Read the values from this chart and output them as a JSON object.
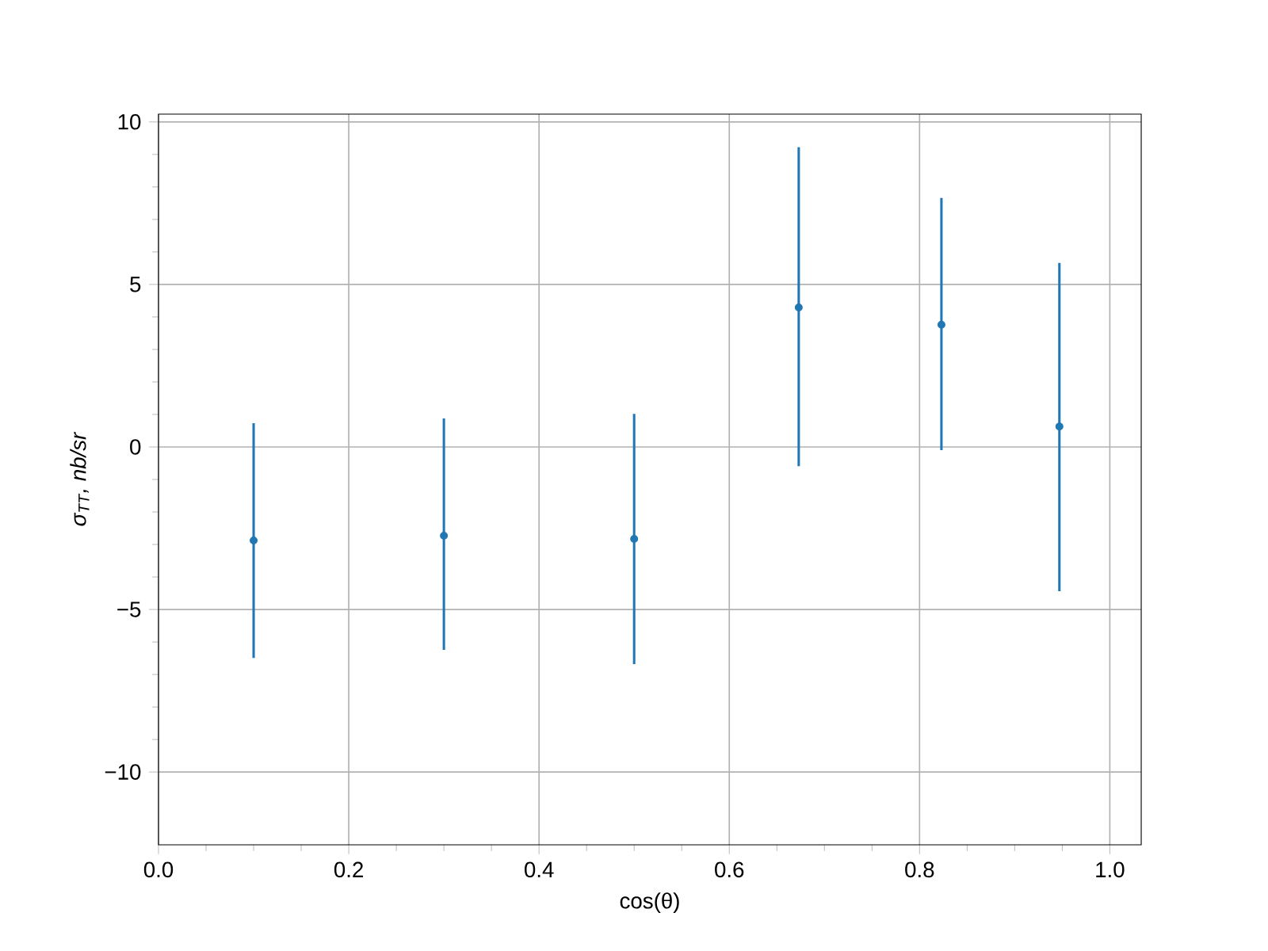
{
  "chart_data": {
    "type": "scatter",
    "xlabel": "cos(θ)",
    "ylabel": "σ$_{TT}$, nb/sr",
    "x": [
      0.1,
      0.3,
      0.5,
      0.673,
      0.823,
      0.947
    ],
    "series": [
      {
        "color": "#1f77b4",
        "values": [
          -2.88,
          -2.73,
          -2.83,
          4.29,
          3.76,
          0.63
        ],
        "errors": [
          [
            -6.49,
            0.73
          ],
          [
            -6.24,
            0.88
          ],
          [
            -6.68,
            1.02
          ],
          [
            -0.59,
            9.22
          ],
          [
            -0.1,
            7.66
          ],
          [
            -4.44,
            5.66
          ]
        ]
      }
    ],
    "xlim": [
      0,
      1.033
    ],
    "ylim": [
      -12.24,
      10.24
    ],
    "xticks": [
      {
        "value": 0,
        "label": "0.0"
      },
      {
        "value": 0.2,
        "label": "0.2"
      },
      {
        "value": 0.4,
        "label": "0.4"
      },
      {
        "value": 0.6,
        "label": "0.6"
      },
      {
        "value": 0.8,
        "label": "0.8"
      },
      {
        "value": 1,
        "label": "1.0"
      }
    ],
    "yticks": [
      {
        "value": -10,
        "label": "−10"
      },
      {
        "value": -5,
        "label": "−5"
      },
      0,
      5,
      10
    ],
    "grid": true,
    "marker": "circle"
  }
}
